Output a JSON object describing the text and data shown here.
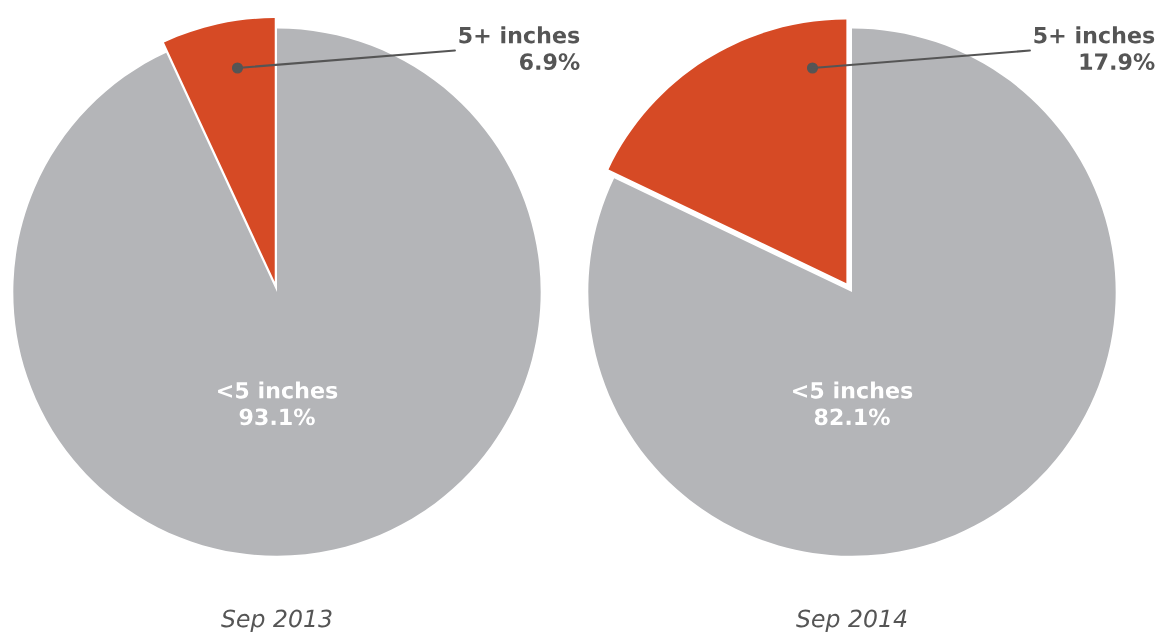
{
  "chart_data": [
    {
      "type": "pie",
      "title": "Sep 2013",
      "categories": [
        "5+ inches",
        "<5 inches"
      ],
      "values": [
        6.9,
        93.1
      ],
      "colors": [
        "#d64a25",
        "#b4b5b8"
      ],
      "value_labels": [
        "6.9%",
        "93.1%"
      ]
    },
    {
      "type": "pie",
      "title": "Sep 2014",
      "categories": [
        "5+ inches",
        "<5 inches"
      ],
      "values": [
        17.9,
        82.1
      ],
      "colors": [
        "#d64a25",
        "#b4b5b8"
      ],
      "value_labels": [
        "17.9%",
        "82.1%"
      ]
    }
  ]
}
